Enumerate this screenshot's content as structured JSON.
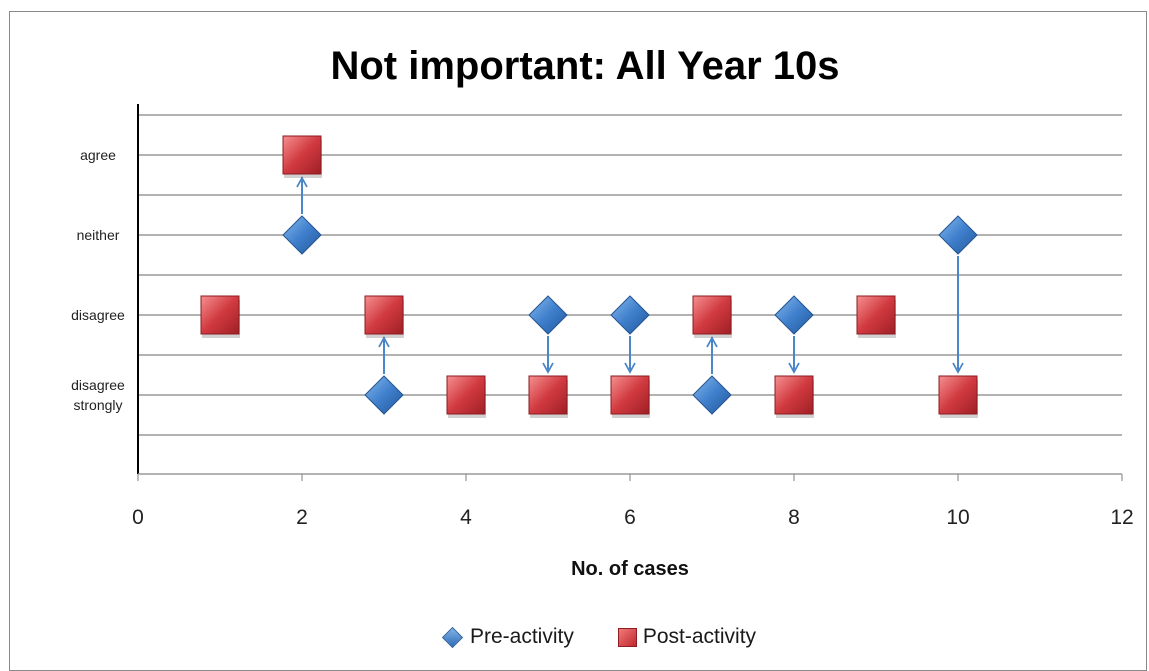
{
  "chart_data": {
    "type": "scatter",
    "title": "Not important: All Year 10s",
    "xlabel": "No. of cases",
    "ylabel": "",
    "xlim": [
      0,
      12
    ],
    "x_ticks": [
      "0",
      "2",
      "4",
      "6",
      "8",
      "10",
      "12"
    ],
    "y_categories": [
      "disagree strongly",
      "disagree",
      "neither",
      "agree"
    ],
    "y_tick_labels": [
      {
        "lines": [
          "disagree",
          "strongly"
        ]
      },
      {
        "lines": [
          "disagree"
        ]
      },
      {
        "lines": [
          "neither"
        ]
      },
      {
        "lines": [
          "agree"
        ]
      }
    ],
    "grid": true,
    "legend_position": "bottom",
    "series": [
      {
        "name": "Pre-activity",
        "marker": "diamond",
        "color": "#3a78c3",
        "points": [
          {
            "x": 2,
            "y": "neither"
          },
          {
            "x": 3,
            "y": "disagree strongly"
          },
          {
            "x": 5,
            "y": "disagree"
          },
          {
            "x": 6,
            "y": "disagree"
          },
          {
            "x": 7,
            "y": "disagree strongly"
          },
          {
            "x": 8,
            "y": "disagree"
          },
          {
            "x": 10,
            "y": "neither"
          }
        ]
      },
      {
        "name": "Post-activity",
        "marker": "square",
        "color": "#c9343a",
        "points": [
          {
            "x": 1,
            "y": "disagree"
          },
          {
            "x": 2,
            "y": "agree"
          },
          {
            "x": 3,
            "y": "disagree"
          },
          {
            "x": 4,
            "y": "disagree strongly"
          },
          {
            "x": 5,
            "y": "disagree strongly"
          },
          {
            "x": 6,
            "y": "disagree strongly"
          },
          {
            "x": 7,
            "y": "disagree"
          },
          {
            "x": 8,
            "y": "disagree strongly"
          },
          {
            "x": 9,
            "y": "disagree"
          },
          {
            "x": 10,
            "y": "disagree strongly"
          }
        ]
      }
    ],
    "arrows": [
      {
        "x": 2,
        "from": "neither",
        "to": "agree"
      },
      {
        "x": 3,
        "from": "disagree strongly",
        "to": "disagree"
      },
      {
        "x": 5,
        "from": "disagree",
        "to": "disagree strongly"
      },
      {
        "x": 6,
        "from": "disagree",
        "to": "disagree strongly"
      },
      {
        "x": 7,
        "from": "disagree strongly",
        "to": "disagree"
      },
      {
        "x": 8,
        "from": "disagree",
        "to": "disagree strongly"
      },
      {
        "x": 10,
        "from": "neither",
        "to": "disagree strongly"
      }
    ]
  }
}
